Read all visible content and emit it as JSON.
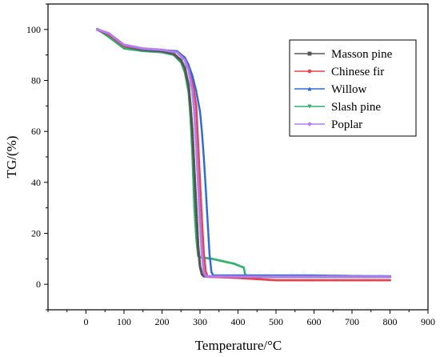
{
  "chart_data": {
    "type": "line",
    "title": "",
    "xlabel": "Temperature/°C",
    "ylabel": "TG/(%)",
    "xlim": [
      -100,
      900
    ],
    "ylim": [
      -10,
      110
    ],
    "xticks": [
      0,
      100,
      200,
      300,
      400,
      500,
      600,
      700,
      800,
      900
    ],
    "yticks": [
      0,
      20,
      40,
      60,
      80,
      100
    ],
    "grid": false,
    "legend": "top-right",
    "series": [
      {
        "name": "Masson pine",
        "color": "#555555",
        "marker": "square",
        "x": [
          30,
          60,
          100,
          150,
          200,
          230,
          250,
          260,
          270,
          275,
          280,
          285,
          290,
          295,
          300,
          305,
          310,
          320,
          400,
          600,
          800
        ],
        "y": [
          100,
          98,
          93.5,
          92,
          91.5,
          90.5,
          88,
          85,
          78,
          70,
          60,
          45,
          30,
          15,
          7,
          4,
          3.2,
          3,
          3,
          3,
          3
        ]
      },
      {
        "name": "Chinese fir",
        "color": "#e8414d",
        "marker": "circle",
        "x": [
          30,
          60,
          100,
          150,
          200,
          240,
          260,
          270,
          280,
          290,
          295,
          300,
          305,
          310,
          315,
          320,
          350,
          400,
          500,
          600,
          700,
          800
        ],
        "y": [
          100,
          98,
          93.5,
          92.5,
          92,
          91,
          89,
          86,
          80,
          70,
          55,
          40,
          25,
          12,
          5,
          3,
          2.8,
          2.5,
          1.6,
          1.6,
          1.6,
          1.6
        ]
      },
      {
        "name": "Willow",
        "color": "#2e6ad8",
        "marker": "triangle",
        "x": [
          30,
          60,
          100,
          150,
          200,
          240,
          260,
          270,
          280,
          290,
          300,
          305,
          310,
          315,
          320,
          325,
          330,
          335,
          400,
          500,
          600,
          700,
          800
        ],
        "y": [
          100,
          98.5,
          94,
          92.5,
          92,
          91.5,
          89,
          86,
          82,
          76,
          68,
          60,
          50,
          38,
          25,
          12,
          5,
          3.5,
          3.5,
          3.5,
          3.5,
          3.3,
          3.2
        ]
      },
      {
        "name": "Slash pine",
        "color": "#2fb36b",
        "marker": "triangle-down",
        "x": [
          30,
          60,
          100,
          150,
          200,
          230,
          250,
          260,
          270,
          275,
          280,
          285,
          290,
          295,
          300,
          330,
          360,
          390,
          415,
          420,
          425,
          500,
          600,
          700,
          800
        ],
        "y": [
          100,
          97,
          92.5,
          91.5,
          91,
          90,
          87,
          83,
          75,
          65,
          50,
          30,
          18,
          11,
          10.5,
          10,
          9,
          8,
          6.5,
          3,
          2.8,
          2.8,
          2.8,
          2.8,
          2.8
        ]
      },
      {
        "name": "Poplar",
        "color": "#b57cf0",
        "marker": "diamond",
        "x": [
          30,
          60,
          100,
          150,
          200,
          240,
          260,
          270,
          280,
          285,
          290,
          295,
          300,
          305,
          310,
          315,
          320,
          400,
          500,
          600,
          700,
          800
        ],
        "y": [
          100,
          98.5,
          94,
          92.5,
          92,
          91,
          88,
          84,
          76,
          68,
          55,
          40,
          25,
          12,
          5,
          3.2,
          3.1,
          3,
          3,
          3,
          3,
          3
        ]
      }
    ]
  }
}
